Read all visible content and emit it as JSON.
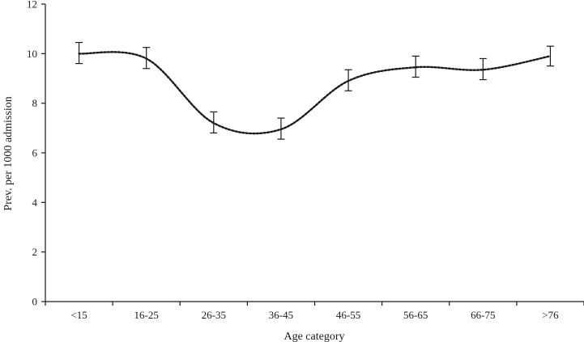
{
  "chart_data": {
    "type": "line",
    "xlabel": "Age category",
    "ylabel": "Prev. per 1000 admission",
    "categories": [
      "<15",
      "16-25",
      "26-35",
      "36-45",
      "46-55",
      "56-65",
      "66-75",
      ">76"
    ],
    "series": [
      {
        "values": [
          10.0,
          9.8,
          7.2,
          6.95,
          8.9,
          9.45,
          9.35,
          9.9
        ],
        "error_low": [
          9.6,
          9.4,
          6.8,
          6.55,
          8.5,
          9.05,
          8.95,
          9.5
        ],
        "error_high": [
          10.45,
          10.25,
          7.65,
          7.4,
          9.35,
          9.9,
          9.8,
          10.3
        ],
        "style": "dotted smoothed line with error bars",
        "color": "#1a1a1a"
      }
    ],
    "ylim": [
      0,
      12
    ],
    "yticks": [
      0,
      2,
      4,
      6,
      8,
      10,
      12
    ],
    "grid": false
  }
}
